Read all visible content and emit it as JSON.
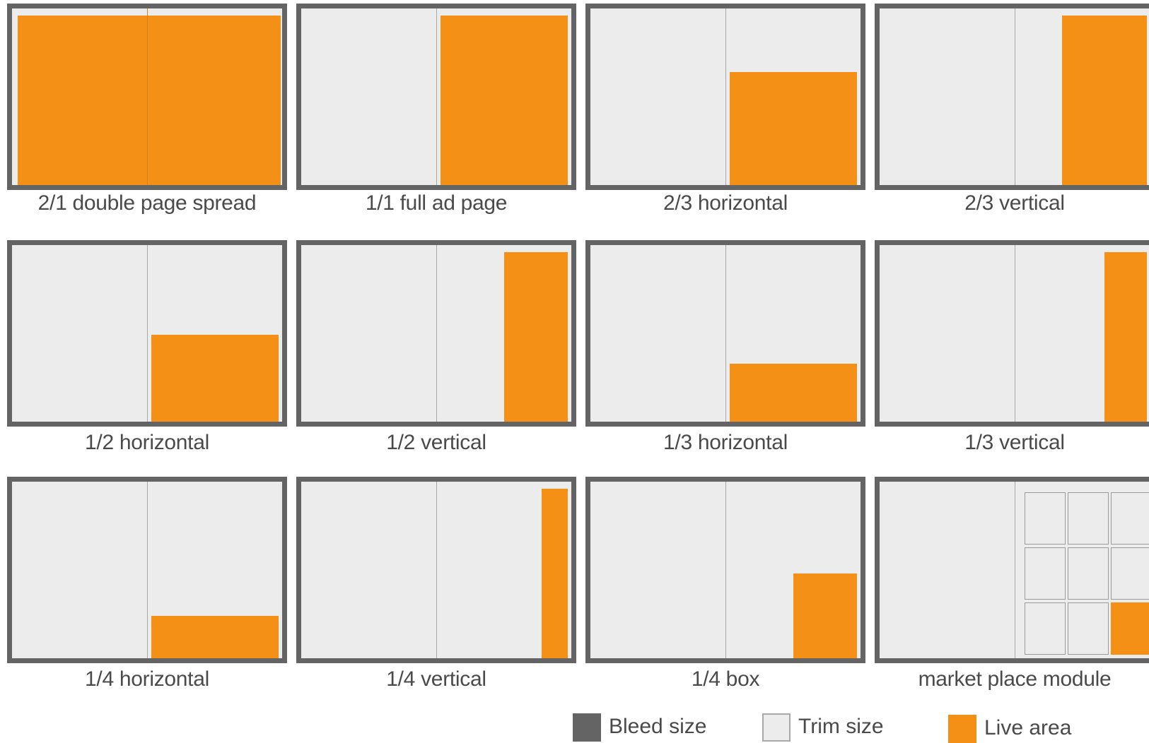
{
  "ad_sizes": [
    {
      "label": "2/1 double page spread"
    },
    {
      "label": "1/1 full ad page"
    },
    {
      "label": "2/3 horizontal"
    },
    {
      "label": "2/3 vertical"
    },
    {
      "label": "1/2 horizontal"
    },
    {
      "label": "1/2 vertical"
    },
    {
      "label": "1/3 horizontal"
    },
    {
      "label": "1/3 vertical"
    },
    {
      "label": "1/4 horizontal"
    },
    {
      "label": "1/4 vertical"
    },
    {
      "label": "1/4 box"
    },
    {
      "label": "market place module"
    }
  ],
  "legend": {
    "bleed": {
      "label": "Bleed size",
      "color": "#646464"
    },
    "trim": {
      "label": "Trim size",
      "color": "#ececec"
    },
    "live": {
      "label": "Live area",
      "color": "#f39015"
    }
  }
}
